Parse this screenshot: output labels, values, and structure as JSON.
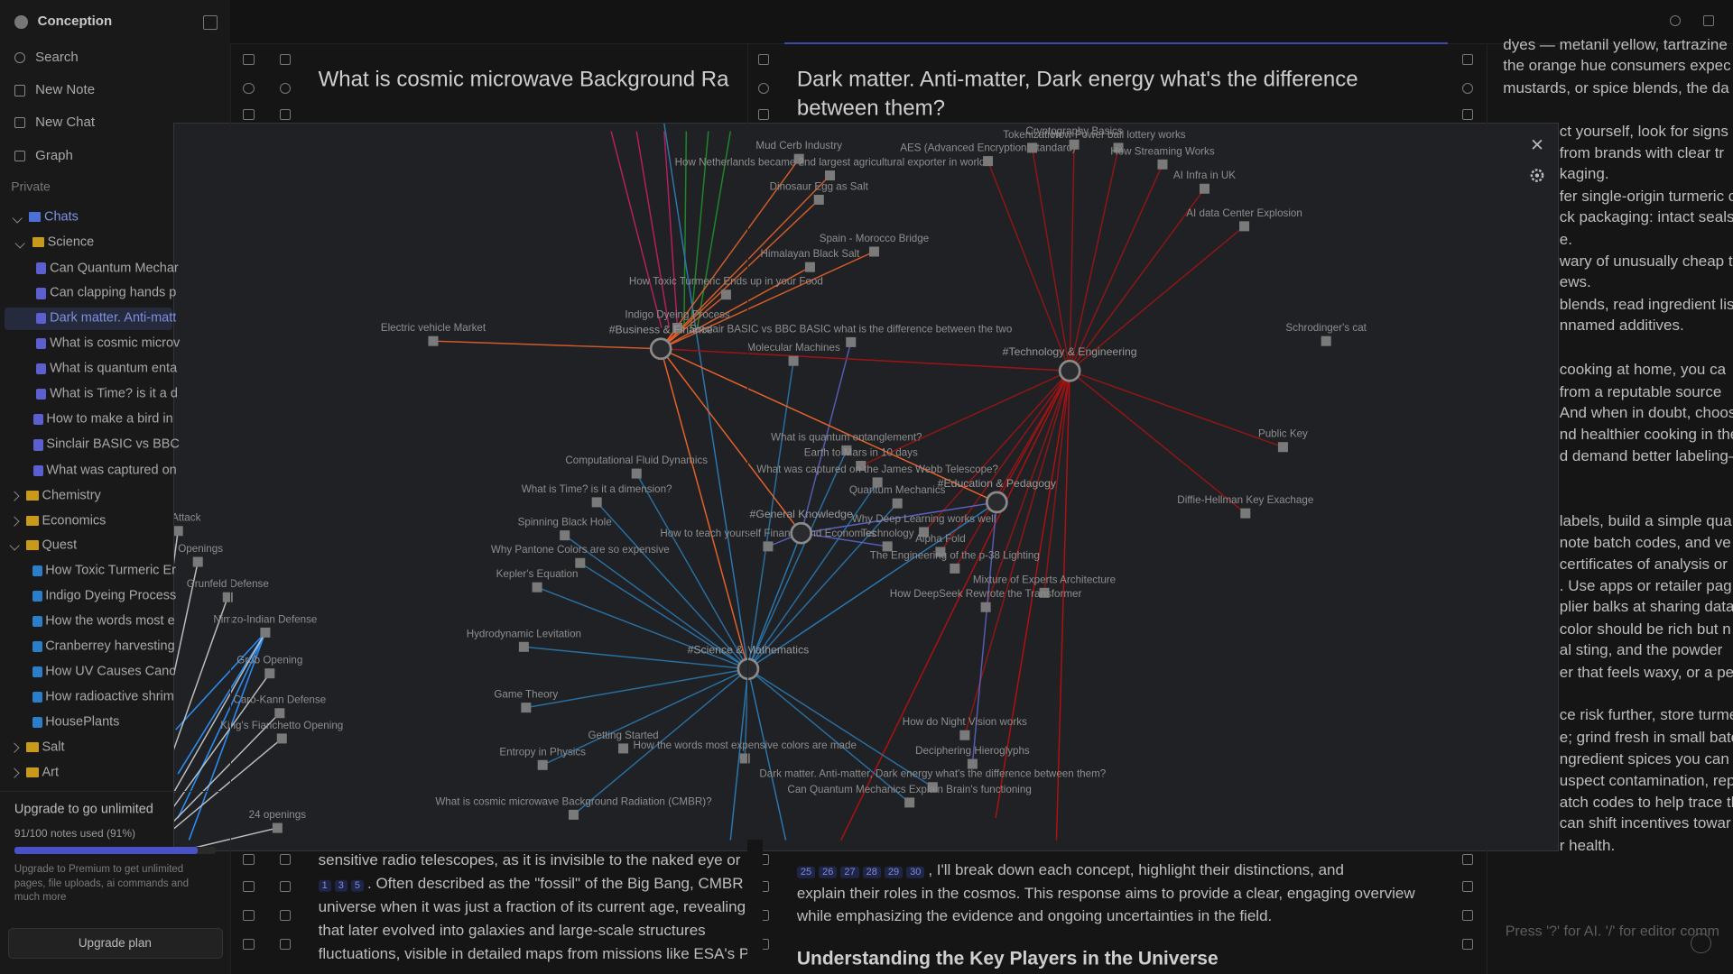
{
  "sidebar": {
    "workspace": "Conception",
    "nav": [
      "Search",
      "New Note",
      "New Chat",
      "Graph"
    ],
    "private": "Private",
    "chats": {
      "label": "Chats",
      "science": {
        "label": "Science",
        "items": [
          "Can Quantum Mechar",
          "Can clapping hands p",
          "Dark matter. Anti-matt",
          "What is cosmic microv",
          "What is quantum enta",
          "What is Time? is it a d"
        ]
      },
      "items": [
        "How to make a bird in",
        "Sinclair BASIC vs BBC",
        "What was captured on"
      ]
    },
    "folders1": [
      "Chemistry",
      "Economics"
    ],
    "quest": {
      "label": "Quest",
      "items": [
        "How Toxic Turmeric Er",
        "Indigo Dyeing Process",
        "How the words most e",
        "Cranberrey harvesting",
        "How UV Causes Canc",
        "How radioactive shrim",
        "HousePlants"
      ]
    },
    "folders2": [
      "Salt",
      "Art"
    ],
    "upgrade": {
      "title": "Upgrade to go unlimited",
      "usage": "91/100 notes used (91%)",
      "text": [
        "Upgrade to Premium to get unlimited",
        "pages, file uploads, ai commands and",
        "much more"
      ],
      "button": "Upgrade plan"
    }
  },
  "panes": [
    {
      "title": [
        "What is cosmic microwave Background Ra"
      ],
      "lines": [
        {
          "cites": [],
          "text": "sensitive radio telescopes, as it is invisible to the naked eye or"
        },
        {
          "cites": [
            "1",
            "3",
            "5"
          ],
          "text": ". Often described as the \"fossil\" of the Big Bang, CMBR"
        },
        {
          "cites": [],
          "text": "universe when it was just a fraction of its current age, revealing"
        },
        {
          "cites": [],
          "text": "that later evolved into galaxies and large-scale structures"
        },
        {
          "cites": [],
          "text": "fluctuations, visible in detailed maps from missions like ESA's P"
        }
      ]
    },
    {
      "title": [
        "Dark matter. Anti-matter, Dark energy what's the difference",
        "between them?"
      ],
      "lines": [
        {
          "cites": [
            "25",
            "26",
            "27",
            "28",
            "29",
            "30"
          ],
          "text": ", I'll break down each concept, highlight their distinctions, and"
        },
        {
          "cites": [],
          "text": "explain their roles in the cosmos. This response aims to provide a clear, engaging overview"
        },
        {
          "cites": [],
          "text": "while emphasizing the evidence and ongoing uncertainties in the field."
        }
      ],
      "heading": "Understanding the Key Players in the Universe"
    },
    {
      "lines": [
        "dyes — metanil yellow, tartrazine",
        "the orange hue consumers expec",
        "mustards, or spice blends, the da",
        "ct yourself, look for signs",
        "from brands with clear tr",
        "kaging.",
        "fer single-origin turmeric c",
        "ck packaging: intact seals",
        "e.",
        "wary of unusually cheap t",
        "ews.",
        "blends, read ingredient lis",
        "nnamed additives.",
        "cooking at home, you ca",
        "from a reputable source",
        "And when in doubt, choos",
        "nd healthier cooking in the",
        "d demand better labeling–",
        "labels, build a simple qua",
        "note batch codes, and ve",
        "certificates of analysis or",
        ". Use apps or retailer pag",
        "plier balks at sharing data,",
        "color should be rich but n",
        "al sting, and the powder",
        "er that feels waxy, or a pe",
        "ce risk further, store turme",
        "e; grind fresh in small batc",
        "ngredient spices you can c",
        "uspect contamination, rep",
        "atch codes to help trace th",
        "can shift incentives towar",
        "r health."
      ],
      "hint": "Press '?' for AI. '/' for editor comm"
    }
  ],
  "graph": {
    "hubs": [
      "#Business & Finance",
      "#Technology & Engineering",
      "#Science & Mathematics",
      "#General Knowledge",
      "#Education & Pedagogy"
    ],
    "nodes": [
      "Mud Cerb Industry",
      "How Netherlands became 2nd largest agricultural exporter in world",
      "Dinosaur Egg as Salt",
      "Spain - Morocco Bridge",
      "Himalayan Black Salt",
      "How Toxic Turmeric Ends up in your Food",
      "Indigo Dyeing Process",
      "Sinclair BASIC vs BBC BASIC what is the difference between the two",
      "Molecular Machines",
      "Electric vehicle Market",
      "AES (Advanced Encryption Standard)",
      "Tokenization",
      "Cryptography Basics",
      "How Power ball lottery works",
      "How Streaming Works",
      "AI Infra in UK",
      "AI data Center Explosion",
      "Schrodinger's cat",
      "Public Key",
      "Diffie-Hellman Key Exachage",
      "Computational Fluid Dynamics",
      "What is Time? is it a dimension?",
      "Spinning Black Hole",
      "Why Pantone Colors are so expensive",
      "How to teach yourself Finance and Economics",
      "Kepler's Equation",
      "Hydrodynamic Levitation",
      "Game Theory",
      "Getting Started",
      "How the words most expensive colors are made",
      "Entropy in Physics",
      "What is cosmic microwave Background Radiation (CMBR)?",
      "What is quantum entanglement?",
      "Earth to Mars in 10 days",
      "What was captured on the James Webb Telescope?",
      "Quantum Mechanics",
      "Why Deep Learning works well",
      "Technology",
      "Alpha Fold",
      "The Engineering of the p-38 Lighting",
      "Mixture of Experts Architecture",
      "How DeepSeek Rewrote the Transformer",
      "How do Night Vision works",
      "Deciphering Hieroglyphs",
      "Dark matter. Anti-matter, Dark energy what's the difference between them?",
      "Can Quantum Mechanics Explain Brain's functioning",
      "ian Attack",
      "l Openings",
      "Grunfeld Defense",
      "Nimzo-Indian Defense",
      "Grob Opening",
      "Caro-Kann Defense",
      "King's Fianchetto Opening",
      "24 openings"
    ]
  }
}
